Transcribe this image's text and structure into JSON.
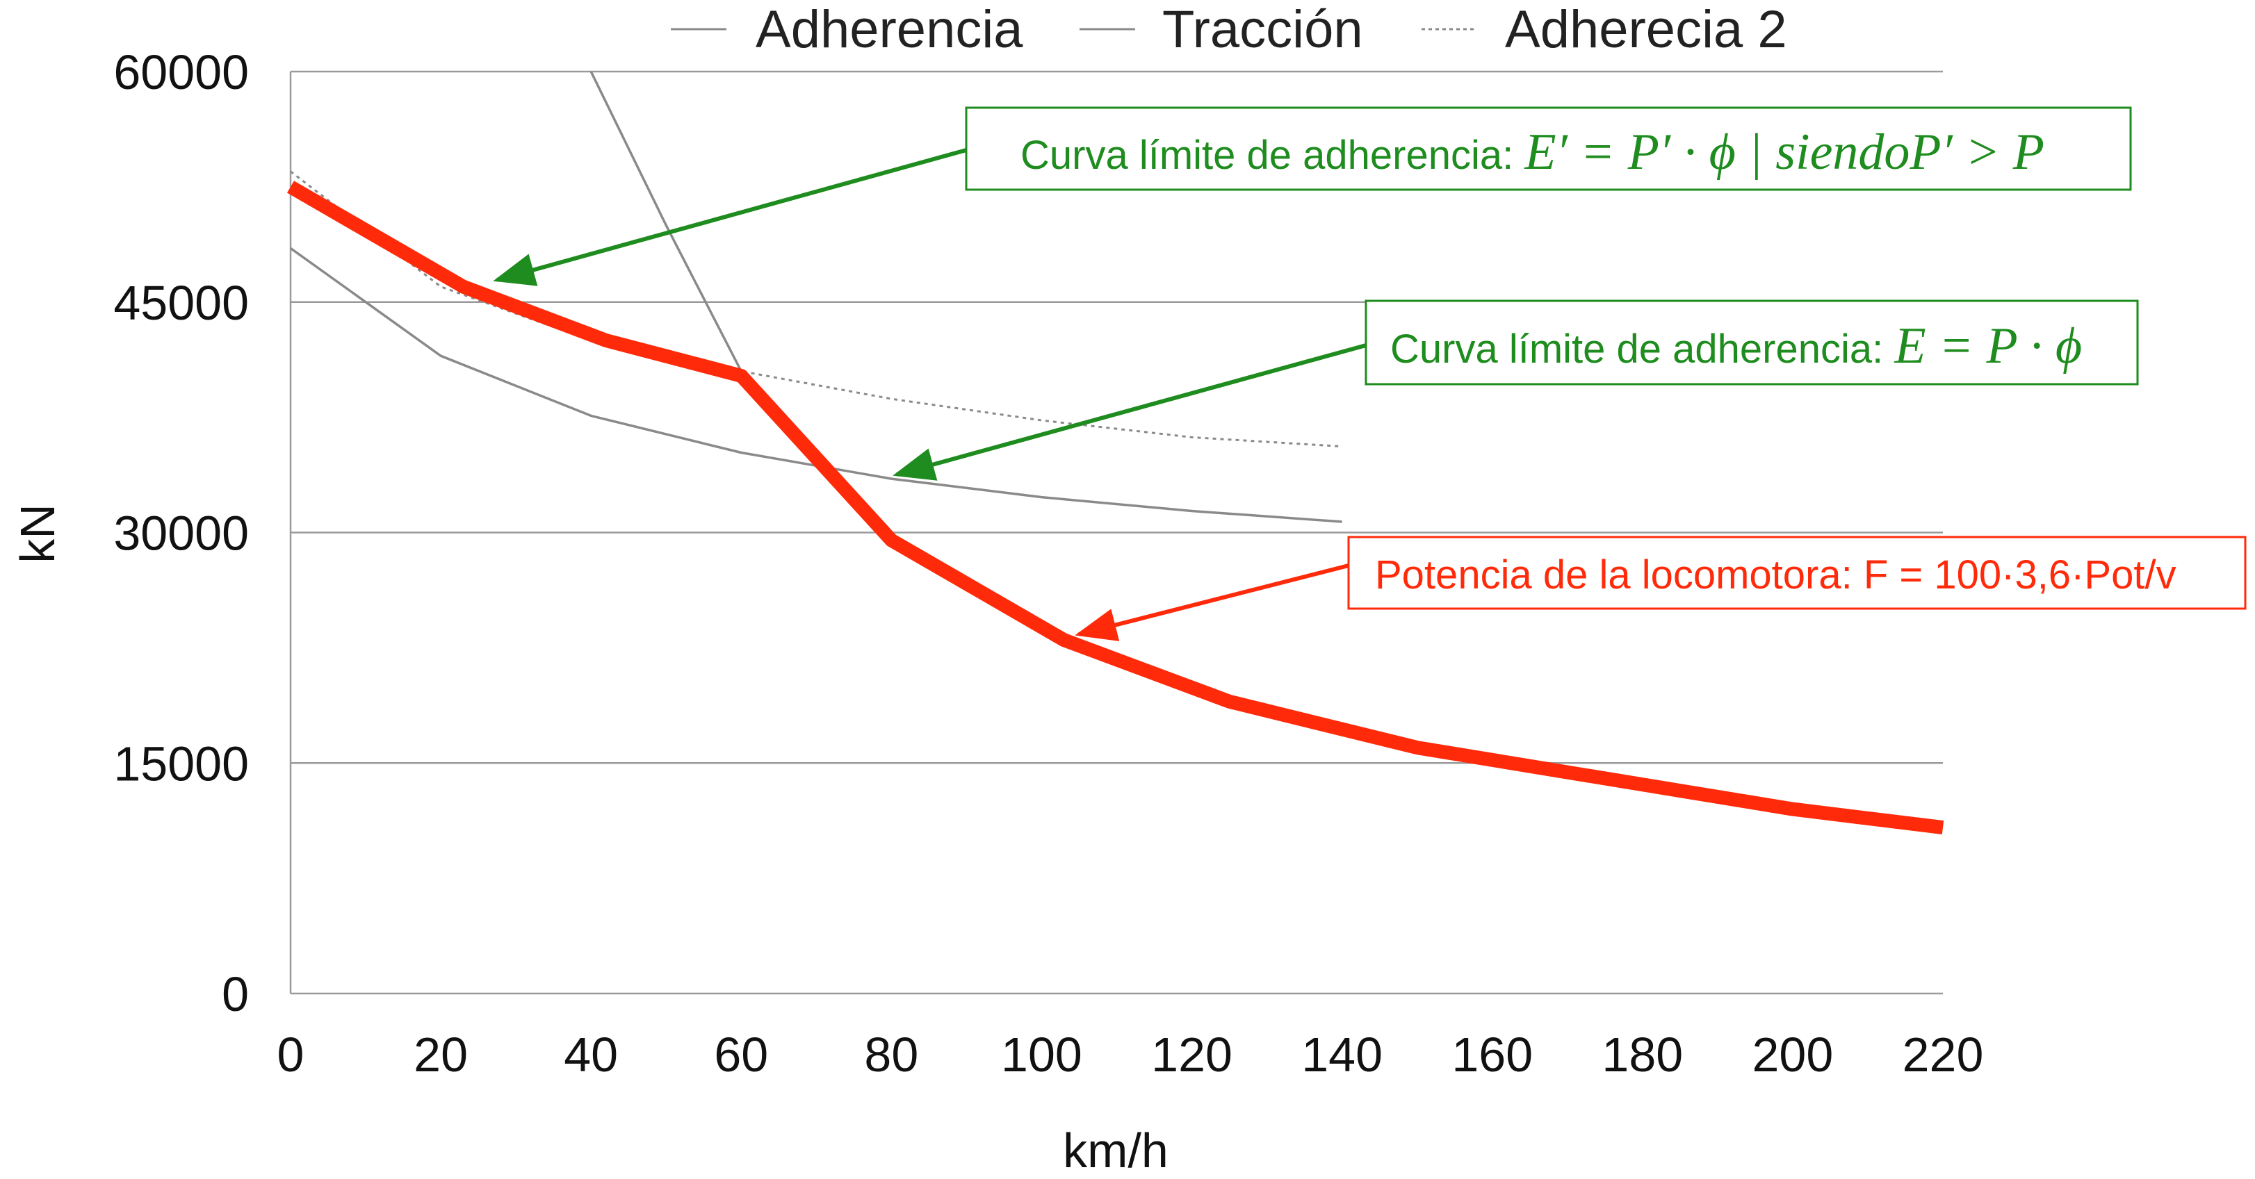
{
  "chart_data": {
    "type": "line",
    "title": "",
    "xlabel": "km/h",
    "ylabel": "kN",
    "xlim": [
      0,
      220
    ],
    "ylim": [
      0,
      60000
    ],
    "x_ticks": [
      0,
      20,
      40,
      60,
      80,
      100,
      120,
      140,
      160,
      180,
      200,
      220
    ],
    "y_ticks": [
      0,
      15000,
      30000,
      45000,
      60000
    ],
    "grid": "horizontal",
    "legend_position": "top",
    "series": [
      {
        "name": "Adherencia",
        "style": "solid",
        "color": "#8a8a8a",
        "points": [
          [
            0,
            48500
          ],
          [
            20,
            41500
          ],
          [
            40,
            37600
          ],
          [
            60,
            35200
          ],
          [
            80,
            33500
          ],
          [
            100,
            32300
          ],
          [
            120,
            31400
          ],
          [
            140,
            30700
          ]
        ]
      },
      {
        "name": "Tracción",
        "style": "solid",
        "color": "#8a8a8a",
        "points": [
          [
            40,
            60000
          ],
          [
            50,
            50000
          ],
          [
            60,
            40500
          ]
        ]
      },
      {
        "name": "Adherecia 2",
        "style": "dotted",
        "color": "#8a8a8a",
        "points": [
          [
            0,
            53500
          ],
          [
            20,
            46000
          ],
          [
            40,
            42500
          ],
          [
            60,
            40500
          ],
          [
            80,
            38700
          ],
          [
            100,
            37300
          ],
          [
            120,
            36200
          ],
          [
            140,
            35600
          ]
        ]
      },
      {
        "name": "Potencia de la locomotora",
        "style": "solid-thick",
        "color": "#ff2a0a",
        "in_legend": false,
        "points": [
          [
            0,
            52500
          ],
          [
            23,
            46000
          ],
          [
            42,
            42500
          ],
          [
            60,
            40200
          ],
          [
            80,
            29500
          ],
          [
            103,
            23000
          ],
          [
            125,
            19000
          ],
          [
            150,
            16000
          ],
          [
            175,
            14000
          ],
          [
            200,
            12000
          ],
          [
            220,
            10800
          ]
        ]
      }
    ],
    "annotations": [
      {
        "id": "ann1",
        "prefix": "Curva límite de adherencia: ",
        "formula": "E′ = P′ · ϕ | siendoP′ > P",
        "color": "#1e8c1e",
        "target": [
          27,
          46500
        ]
      },
      {
        "id": "ann2",
        "prefix": "Curva límite de adherencia: ",
        "formula": "E = P · ϕ",
        "color": "#1e8c1e",
        "target": [
          80,
          33800
        ]
      },
      {
        "id": "ann3",
        "prefix": "Potencia de la locomotora: F = 100·3,6·Pot/v",
        "formula": "",
        "color": "#ff2a0a",
        "target": [
          104,
          23000
        ]
      }
    ]
  }
}
